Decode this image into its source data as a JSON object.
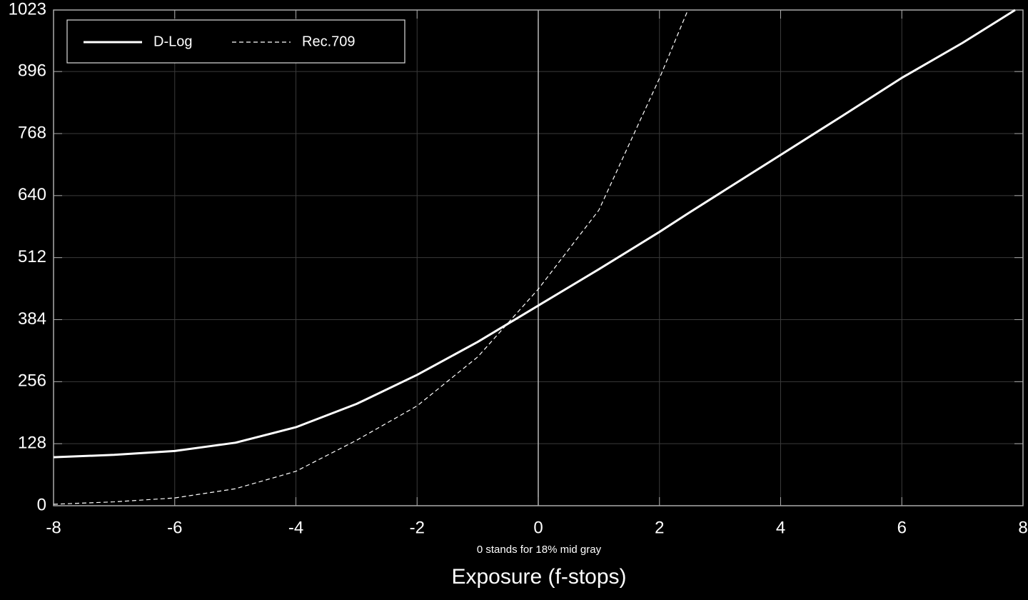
{
  "chart_data": {
    "type": "line",
    "note": "0 stands for 18% mid gray",
    "xlabel": "Exposure (f-stops)",
    "x": [
      -8,
      -7,
      -6,
      -5,
      -4,
      -3,
      -2,
      -1,
      0,
      1,
      2,
      2.47,
      3,
      4,
      5,
      6,
      7,
      7.87
    ],
    "series": [
      {
        "name": "D-Log",
        "color": "#ffffff",
        "style": "solid",
        "values": [
          100,
          105,
          113,
          130,
          162,
          210,
          270,
          338,
          413,
          488,
          565,
          603,
          645,
          724,
          803,
          883,
          955,
          1023
        ]
      },
      {
        "name": "Rec.709",
        "color": "#ffffff",
        "style": "dashed",
        "values": [
          3,
          8,
          16,
          35,
          71,
          135,
          206,
          307,
          447,
          610,
          882,
          1023,
          null,
          null,
          null,
          null,
          null,
          null
        ]
      }
    ],
    "xlim": [
      -8,
      8
    ],
    "xticks": [
      -8,
      -6,
      -4,
      -2,
      0,
      2,
      4,
      6,
      8
    ],
    "ylim": [
      0,
      1023
    ],
    "yticks": [
      0,
      128,
      256,
      384,
      512,
      640,
      768,
      896,
      1023
    ],
    "grid": true,
    "legend": "upper left"
  }
}
